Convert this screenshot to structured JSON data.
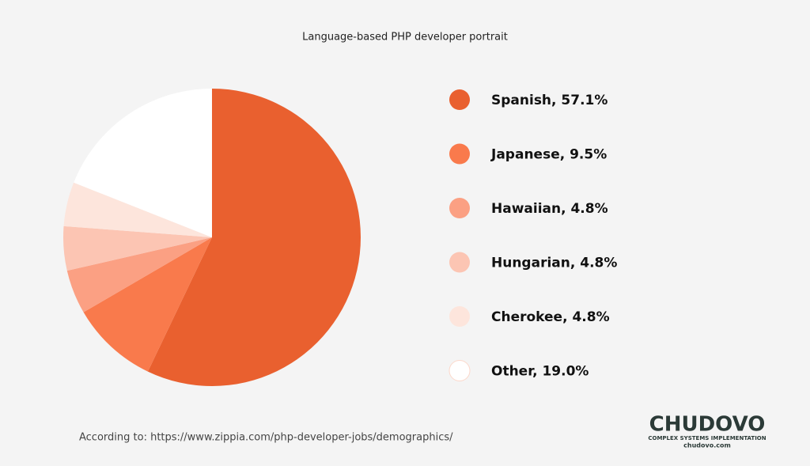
{
  "chart_data": {
    "type": "pie",
    "title": "Language-based PHP developer portrait",
    "categories": [
      "Spanish, 57.1%",
      "Japanese, 9.5%",
      "Hawaiian, 4.8%",
      "Hungarian, 4.8%",
      "Cherokee, 4.8%",
      "Other, 19.0%"
    ],
    "values": [
      57.1,
      9.5,
      4.8,
      4.8,
      4.8,
      19.0
    ],
    "colors": [
      "#e9602f",
      "#f97a4c",
      "#fba083",
      "#fcc5b3",
      "#fde5dc",
      "#ffffff"
    ],
    "legend": "right",
    "source": "According to: https://www.zippia.com/php-developer-jobs/demographics/",
    "brand": {
      "name": "CHUDOVO",
      "tagline": "COMPLEX SYSTEMS IMPLEMENTATION",
      "site": "chudovo.com"
    }
  }
}
